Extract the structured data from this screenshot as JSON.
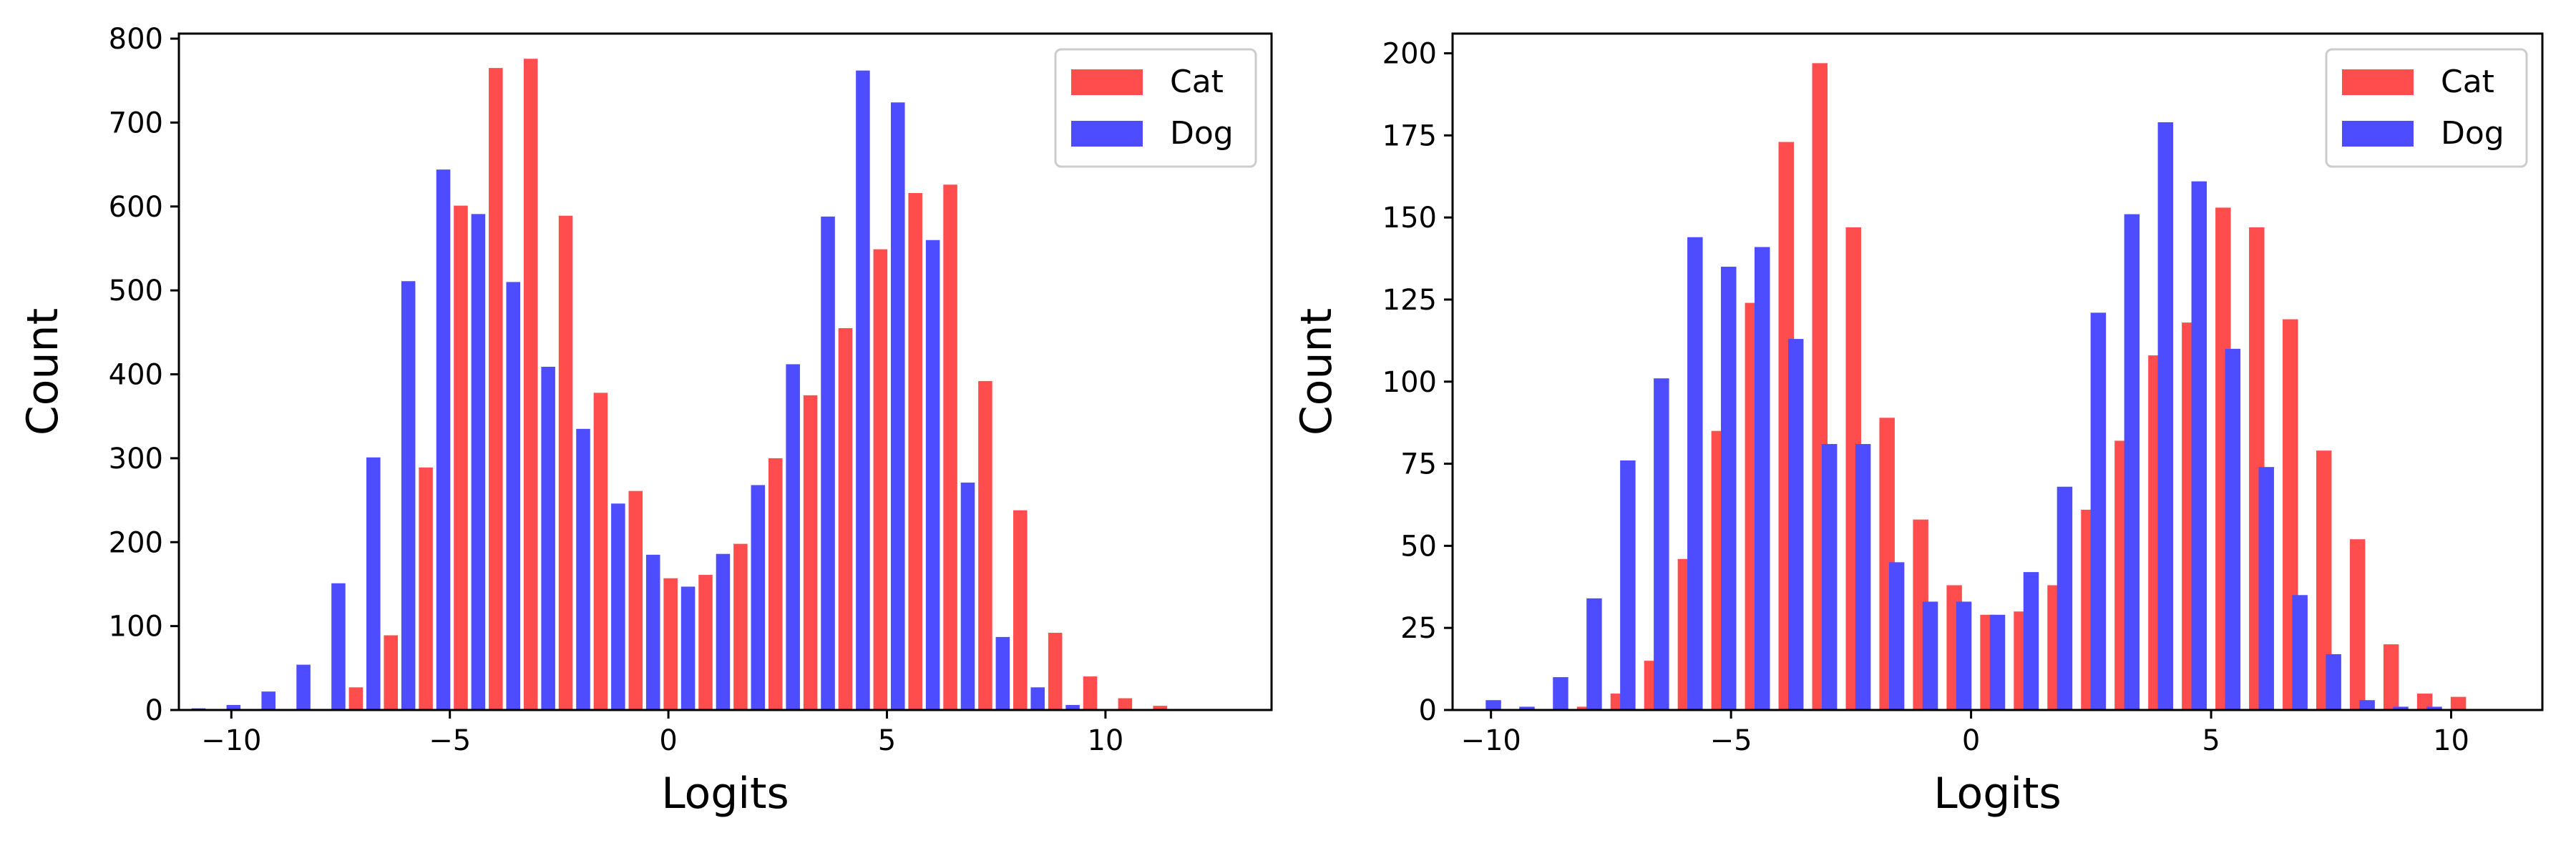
{
  "colors": {
    "cat": "#ff4d4d",
    "dog": "#4d4dff"
  },
  "chart_data": [
    {
      "type": "bar",
      "xlabel": "Logits",
      "ylabel": "Count",
      "xlim": [
        -11.2,
        13.8
      ],
      "ylim": [
        0,
        806
      ],
      "xticks": [
        -10,
        -5,
        0,
        5,
        10
      ],
      "xtick_labels": [
        "−10",
        "−5",
        "0",
        "5",
        "10"
      ],
      "yticks": [
        0,
        100,
        200,
        300,
        400,
        500,
        600,
        700,
        800
      ],
      "ytick_labels": [
        "0",
        "100",
        "200",
        "300",
        "400",
        "500",
        "600",
        "700",
        "800"
      ],
      "legend": "top-right",
      "grid": false,
      "series": [
        {
          "name": "Cat",
          "color": "#ff4d4d",
          "x": [
            -7.15,
            -6.35,
            -5.55,
            -4.75,
            -3.95,
            -3.15,
            -2.35,
            -1.55,
            -0.75,
            0.05,
            0.85,
            1.65,
            2.45,
            3.25,
            4.05,
            4.85,
            5.65,
            6.45,
            7.25,
            8.05,
            8.85,
            9.65,
            10.45,
            11.25
          ],
          "values": [
            27,
            89,
            289,
            601,
            765,
            776,
            589,
            378,
            261,
            157,
            161,
            198,
            300,
            375,
            455,
            549,
            616,
            626,
            392,
            238,
            92,
            40,
            14,
            5
          ]
        },
        {
          "name": "Dog",
          "color": "#4d4dff",
          "x": [
            -10.75,
            -9.95,
            -9.15,
            -8.35,
            -7.55,
            -6.75,
            -5.95,
            -5.15,
            -4.35,
            -3.55,
            -2.75,
            -1.95,
            -1.15,
            -0.35,
            0.45,
            1.25,
            2.05,
            2.85,
            3.65,
            4.45,
            5.25,
            6.05,
            6.85,
            7.65,
            8.45,
            9.25
          ],
          "values": [
            2,
            6,
            22,
            54,
            151,
            301,
            511,
            644,
            591,
            510,
            409,
            335,
            246,
            185,
            147,
            186,
            268,
            412,
            588,
            762,
            724,
            560,
            271,
            87,
            27,
            6
          ]
        }
      ]
    },
    {
      "type": "bar",
      "xlabel": "Logits",
      "ylabel": "Count",
      "xlim": [
        -10.8,
        11.9
      ],
      "ylim": [
        0,
        206
      ],
      "xticks": [
        -10,
        -5,
        0,
        5,
        10
      ],
      "xtick_labels": [
        "−10",
        "−5",
        "0",
        "5",
        "10"
      ],
      "yticks": [
        0,
        25,
        50,
        75,
        100,
        125,
        150,
        175,
        200
      ],
      "ytick_labels": [
        "0",
        "25",
        "50",
        "75",
        "100",
        "125",
        "150",
        "175",
        "200"
      ],
      "legend": "top-right",
      "grid": false,
      "series": [
        {
          "name": "Cat",
          "color": "#ff4d4d",
          "x": [
            -8.05,
            -7.35,
            -6.65,
            -5.95,
            -5.25,
            -4.55,
            -3.85,
            -3.15,
            -2.45,
            -1.75,
            -1.05,
            -0.35,
            0.35,
            1.05,
            1.75,
            2.45,
            3.15,
            3.85,
            4.55,
            5.25,
            5.95,
            6.65,
            7.35,
            8.05,
            8.75,
            9.45,
            10.15
          ],
          "values": [
            1,
            5,
            15,
            46,
            85,
            124,
            173,
            197,
            147,
            89,
            58,
            38,
            29,
            30,
            38,
            61,
            82,
            108,
            118,
            153,
            147,
            119,
            79,
            52,
            20,
            5,
            4
          ]
        },
        {
          "name": "Dog",
          "color": "#4d4dff",
          "x": [
            -9.95,
            -9.25,
            -8.55,
            -7.85,
            -7.15,
            -6.45,
            -5.75,
            -5.05,
            -4.35,
            -3.65,
            -2.95,
            -2.25,
            -1.55,
            -0.85,
            -0.15,
            0.55,
            1.25,
            1.95,
            2.65,
            3.35,
            4.05,
            4.75,
            5.45,
            6.15,
            6.85,
            7.55,
            8.25,
            8.95,
            9.65
          ],
          "values": [
            3,
            1,
            10,
            34,
            76,
            101,
            144,
            135,
            141,
            113,
            81,
            81,
            45,
            33,
            33,
            29,
            42,
            68,
            121,
            151,
            179,
            161,
            110,
            74,
            35,
            17,
            3,
            1,
            1
          ]
        }
      ]
    }
  ]
}
